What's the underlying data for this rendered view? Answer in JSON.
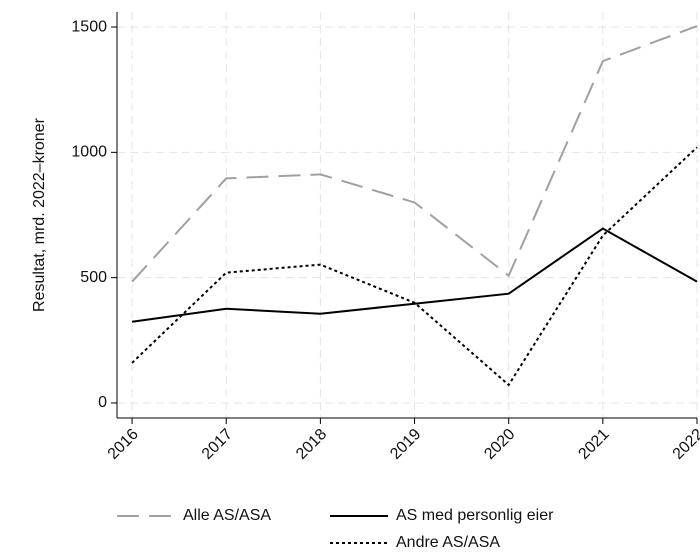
{
  "chart_data": {
    "type": "line",
    "y_label": "Resultat, mrd. 2022–kroner",
    "x": [
      2016,
      2017,
      2018,
      2019,
      2020,
      2021,
      2022
    ],
    "xlim": [
      2015.84,
      2022
    ],
    "xticks": [
      2016,
      2017,
      2018,
      2019,
      2020,
      2021,
      2022
    ],
    "ylim": [
      -60,
      1560
    ],
    "yticks": [
      0,
      500,
      1000,
      1500
    ],
    "grid": true,
    "series": [
      {
        "name": "Alle AS/ASA",
        "color": "#a0a0a0",
        "dash": "long",
        "values": [
          484,
          896,
          912,
          800,
          508,
          1364,
          1504
        ]
      },
      {
        "name": "AS med personlig eier",
        "color": "#000000",
        "dash": "solid",
        "values": [
          324,
          376,
          356,
          396,
          436,
          696,
          484
        ]
      },
      {
        "name": "Andre AS/ASA",
        "color": "#000000",
        "dash": "dot",
        "values": [
          160,
          520,
          552,
          400,
          72,
          668,
          1020
        ]
      }
    ]
  }
}
